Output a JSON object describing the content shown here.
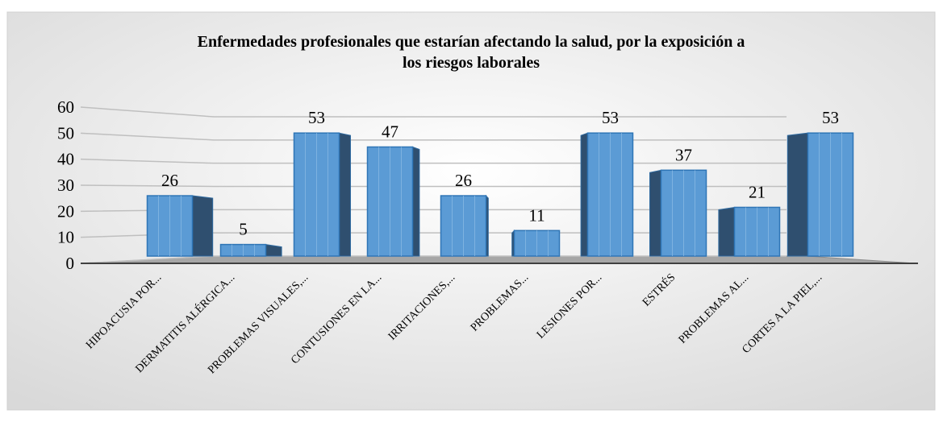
{
  "chart_data": {
    "type": "bar",
    "title": "Enfermedades profesionales que estarían afectando la salud, por la exposición a los riesgos laborales",
    "categories": [
      "HIPOACUSIA POR...",
      "DERMATITIS ALÉRGICA...",
      "PROBLEMAS VISUALES,...",
      "CONTUSIONES EN LA...",
      "IRRITACIONES,...",
      "PROBLEMAS...",
      "LESIONES POR...",
      "ESTRÉS",
      "PROBLEMAS AL...",
      "CORTES A LA PIEL,..."
    ],
    "values": [
      26,
      5,
      53,
      47,
      26,
      11,
      53,
      37,
      21,
      53
    ],
    "color": "#5b9bd5",
    "ylim": [
      0,
      60
    ],
    "yticks": [
      0,
      10,
      20,
      30,
      40,
      50,
      60
    ],
    "grid": true
  }
}
